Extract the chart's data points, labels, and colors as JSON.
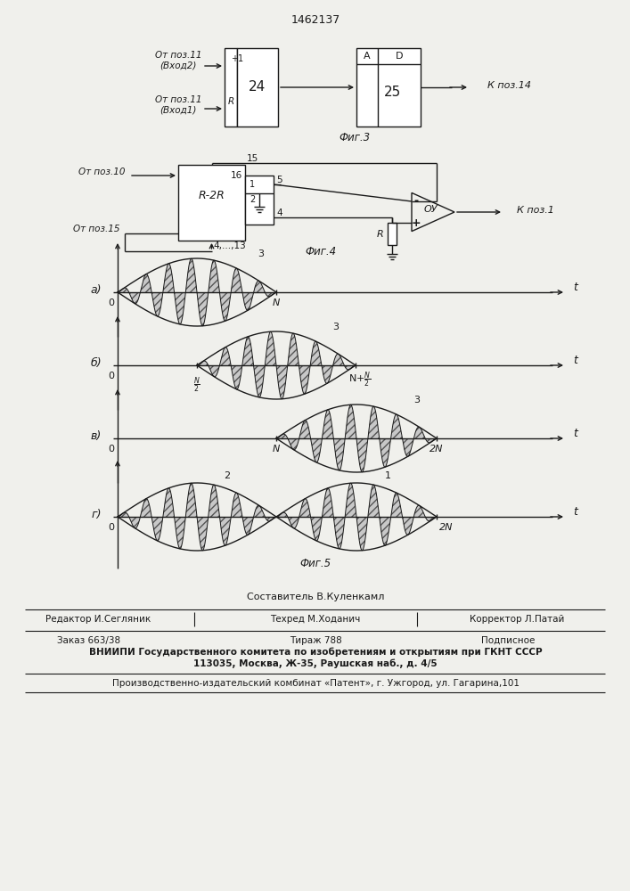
{
  "patent_number": "1462137",
  "background_color": "#f0f0ec",
  "line_color": "#1a1a1a",
  "fig3": {
    "title": "Фиг.3",
    "block24_label": "24",
    "block25_label": "25",
    "block25_top_labels": [
      "A",
      "D"
    ],
    "input1_line1": "От поз.11",
    "input1_line2": "(Вход 2)",
    "input1_pin": "+1",
    "input2_line1": "От поз.11",
    "input2_line2": "(Вход 1)",
    "input2_pin": "R",
    "output_label": "К поз.14"
  },
  "fig4": {
    "title": "Фиг.4",
    "block_label": "R-2R",
    "input1_label": "От поз.10",
    "input2_label": "От поз.15",
    "output_label": "К поз.1",
    "pin15": "15",
    "pin16": "16",
    "pin1": "1",
    "pin2": "2",
    "pin5": "5",
    "pin4": "4",
    "pins_bottom": "4,...,13",
    "op_amp_label": "ОУ",
    "resistor_label": "R"
  },
  "fig5": {
    "title": "Фиг.5",
    "labels": [
      "а)",
      "б)",
      "в)",
      "г)"
    ]
  },
  "footer": {
    "composer": "Составитель В.Куленкамл",
    "editor": "Редактор И.Сегляник",
    "tech": "Техред М.Ходанич",
    "corrector": "Корректор Л.Патай",
    "order": "Заказ 663/38",
    "circulation": "Тираж 788",
    "subscription": "Подписное",
    "vniip": "ВНИИПИ Государственного комитета по изобретениям и открытиям при ГКНТ СССР",
    "address": "113035, Москва, Ж-35, Раушская наб., д. 4/5",
    "plant": "Производственно-издательский комбинат «Патент», г. Ужгород, ул. Гагарина,101"
  }
}
